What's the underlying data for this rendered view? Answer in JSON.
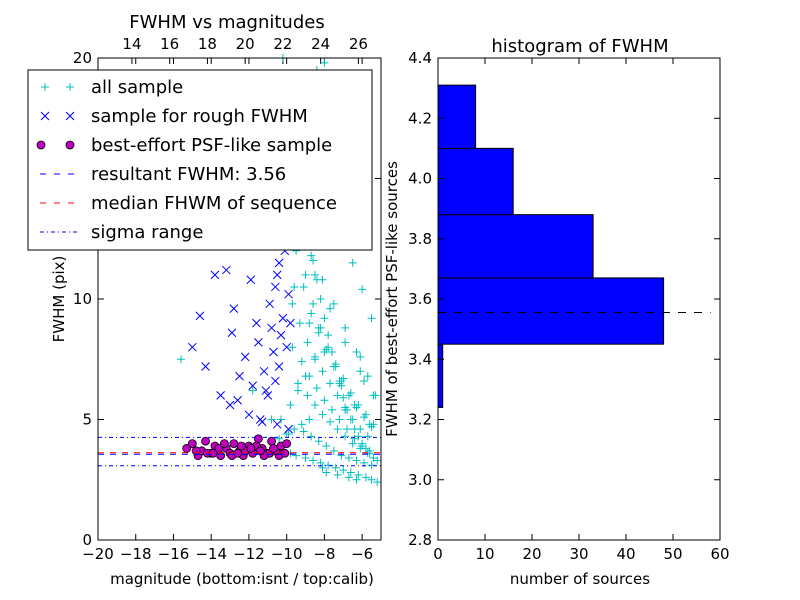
{
  "chart_data": [
    {
      "type": "scatter",
      "title": "FWHM vs magnitudes",
      "xlabel": "magnitude (bottom:isnt / top:calib)",
      "ylabel": "FWHM (pix)",
      "xlim": [
        -20,
        -5
      ],
      "ylim": [
        0,
        20
      ],
      "x_ticks": [
        "−20",
        "−18",
        "−16",
        "−14",
        "−12",
        "−10",
        "−8",
        "−6"
      ],
      "y_ticks": [
        "0",
        "5",
        "10",
        "15",
        "20"
      ],
      "top_axis": {
        "label_values": [
          "14",
          "16",
          "18",
          "20",
          "22",
          "24",
          "26"
        ],
        "calib_minus_isnt": 32.2
      },
      "grid": false,
      "legend_position": "upper-left",
      "legend": [
        {
          "key": "all",
          "label": "all sample",
          "marker": "+",
          "color": "#00BFBF"
        },
        {
          "key": "rough",
          "label": "sample for rough FWHM",
          "marker": "x",
          "color": "#0000FF"
        },
        {
          "key": "best",
          "label": "best-effort PSF-like sample",
          "marker": "o",
          "color": "#BF00BF"
        },
        {
          "key": "result",
          "label": "resultant FWHM: 3.56",
          "line": "dashed",
          "color": "#0000FF"
        },
        {
          "key": "median",
          "label": "median FHWM of sequence",
          "line": "dashed",
          "color": "#FF0000"
        },
        {
          "key": "sigma",
          "label": "sigma range",
          "line": "dashdot",
          "color": "#0000FF"
        }
      ],
      "hlines": {
        "result": 3.56,
        "median": 3.62,
        "sigma": [
          3.08,
          4.26
        ]
      },
      "series": [
        {
          "key": "all",
          "x": [
            -10.2,
            -10.0,
            -9.8,
            -9.6,
            -9.4,
            -9.2,
            -9.0,
            -8.8,
            -8.6,
            -8.4,
            -8.2,
            -8.0,
            -7.8,
            -7.6,
            -7.4,
            -7.2,
            -7.0,
            -6.8,
            -6.6,
            -6.4,
            -6.2,
            -6.0,
            -5.8,
            -5.6,
            -5.4,
            -5.2,
            -9.5,
            -9.1,
            -8.7,
            -8.3,
            -7.9,
            -7.5,
            -7.1,
            -6.7,
            -6.3,
            -5.9,
            -5.5,
            -9.3,
            -8.9,
            -8.5,
            -8.1,
            -7.7,
            -7.3,
            -6.9,
            -6.5,
            -6.1,
            -5.7,
            -9.7,
            -9.2,
            -8.8,
            -8.4,
            -8.0,
            -7.6,
            -7.2,
            -6.8,
            -6.4,
            -6.0,
            -5.6,
            -9.0,
            -8.6,
            -8.2,
            -7.8,
            -7.4,
            -7.0,
            -6.6,
            -6.2,
            -5.8,
            -5.4,
            -9.4,
            -8.9,
            -8.5,
            -8.1,
            -7.7,
            -7.3,
            -6.9,
            -6.5,
            -6.1,
            -5.7,
            -9.1,
            -8.7,
            -8.3,
            -7.9,
            -7.5,
            -7.1,
            -6.7,
            -6.3,
            -5.9,
            -5.5,
            -9.6,
            -8.8,
            -8.0,
            -7.2,
            -6.4,
            -5.6,
            -9.3,
            -8.5,
            -7.7,
            -6.9,
            -6.1,
            -5.3,
            -10.5,
            -11.0,
            -11.5,
            -12.5,
            -13.5,
            -14.5,
            -9.8,
            -9.5,
            -9.0,
            -8.6,
            -8.2,
            -7.8,
            -7.4,
            -7.0,
            -6.6,
            -6.2,
            -5.8,
            -5.5,
            -5.2,
            -8.4,
            -8.0,
            -7.6,
            -7.2,
            -6.8,
            -6.4,
            -7.5,
            -7.0,
            -6.5,
            -6.0,
            -5.5,
            -8.8,
            -9.2,
            -9.6,
            -10.0,
            -10.4,
            -13.0,
            -14.0,
            -15.0,
            -16.5,
            -17.5,
            -8.1,
            -7.9,
            -7.3,
            -6.7,
            -6.3,
            -8.5,
            -9.0,
            -9.4,
            -9.8,
            -10.3,
            -12.0,
            -13.8,
            -15.2,
            -15.6,
            -11.8,
            -10.8,
            -9.9,
            -9.7,
            -8.3,
            -7.1,
            -6.9,
            -6.1,
            -5.9,
            -5.4,
            -9.3,
            -8.7,
            -8.1,
            -7.5,
            -6.9,
            -6.3,
            -5.7
          ],
          "y": [
            20.0,
            18.5,
            17.0,
            16.0,
            15.2,
            14.5,
            13.8,
            12.5,
            11.6,
            10.8,
            10.0,
            9.2,
            8.5,
            7.8,
            7.2,
            6.5,
            5.9,
            5.4,
            5.0,
            4.6,
            4.3,
            4.0,
            3.8,
            3.6,
            3.4,
            3.3,
            12.0,
            10.5,
            9.4,
            8.6,
            7.9,
            7.2,
            6.6,
            6.0,
            5.5,
            5.1,
            4.7,
            9.0,
            8.2,
            7.6,
            7.0,
            6.5,
            6.0,
            5.5,
            5.0,
            4.6,
            4.3,
            8.0,
            7.4,
            6.8,
            6.3,
            5.8,
            5.4,
            5.0,
            4.6,
            4.2,
            3.9,
            3.7,
            11.0,
            9.8,
            8.8,
            8.0,
            7.3,
            6.7,
            6.1,
            5.6,
            5.2,
            4.8,
            6.5,
            6.0,
            5.6,
            5.2,
            4.9,
            4.6,
            4.3,
            4.0,
            3.8,
            3.6,
            4.5,
            4.3,
            4.1,
            3.9,
            3.7,
            3.5,
            3.4,
            3.3,
            3.2,
            3.1,
            10.5,
            9.0,
            7.8,
            6.6,
            5.6,
            4.8,
            13.0,
            11.0,
            9.6,
            8.2,
            7.0,
            6.0,
            15.5,
            14.0,
            14.8,
            15.8,
            14.3,
            15.3,
            3.6,
            3.5,
            3.4,
            3.3,
            3.2,
            3.1,
            3.0,
            2.9,
            2.8,
            2.7,
            2.6,
            2.5,
            2.4,
            19.5,
            19.8,
            19.2,
            18.2,
            17.6,
            16.8,
            13.5,
            12.6,
            11.5,
            10.4,
            9.2,
            5.0,
            4.8,
            4.6,
            4.4,
            4.2,
            14.6,
            15.0,
            15.4,
            16.0,
            15.6,
            3.0,
            2.8,
            2.7,
            2.6,
            2.5,
            7.5,
            6.8,
            6.2,
            5.6,
            5.0,
            13.6,
            15.6,
            14.6,
            7.5,
            6.2,
            5.0,
            4.4,
            9.8,
            8.8,
            6.4,
            5.4,
            7.6,
            6.6,
            6.0,
            12.8,
            11.8,
            10.8,
            9.8,
            8.8,
            7.8,
            6.8
          ]
        },
        {
          "key": "rough",
          "x": [
            -15.0,
            -14.3,
            -13.5,
            -13.0,
            -12.5,
            -12.2,
            -12.0,
            -11.8,
            -11.5,
            -11.2,
            -11.0,
            -10.8,
            -10.6,
            -10.4,
            -10.2,
            -10.0,
            -9.9,
            -9.8,
            -13.8,
            -12.8,
            -11.6,
            -10.9,
            -10.5,
            -10.1,
            -9.9,
            -9.8,
            -10.7,
            -10.3,
            -12.6,
            -11.4,
            -10.6,
            -10.2,
            -9.9,
            -14.6,
            -13.2,
            -12.4,
            -11.9,
            -11.1,
            -10.4,
            -10.0,
            -9.8,
            -11.7,
            -10.8,
            -10.1,
            -12.9,
            -11.3,
            -10.5,
            -9.9
          ],
          "y": [
            8.0,
            7.2,
            6.0,
            5.6,
            6.8,
            7.6,
            5.2,
            6.4,
            8.2,
            7.0,
            6.0,
            8.8,
            10.5,
            11.5,
            12.5,
            13.5,
            14.6,
            15.2,
            11.0,
            9.6,
            9.0,
            9.8,
            11.0,
            12.0,
            13.0,
            14.0,
            7.8,
            8.5,
            5.8,
            5.0,
            6.6,
            9.2,
            10.2,
            9.3,
            11.2,
            12.5,
            10.8,
            6.2,
            7.2,
            8.0,
            9.0,
            15.8,
            14.2,
            12.8,
            8.6,
            4.9,
            4.8,
            4.6
          ]
        },
        {
          "key": "best",
          "x": [
            -15.3,
            -15.0,
            -14.7,
            -14.5,
            -14.3,
            -14.0,
            -13.8,
            -13.5,
            -13.2,
            -13.0,
            -12.8,
            -12.5,
            -12.3,
            -12.0,
            -11.8,
            -11.5,
            -11.3,
            -11.0,
            -10.8,
            -10.5,
            -10.3,
            -10.0,
            -14.2,
            -13.6,
            -12.9,
            -12.2,
            -11.6,
            -10.9,
            -10.4,
            -13.3,
            -12.6,
            -11.9,
            -11.2,
            -10.6,
            -10.1,
            -14.8,
            -13.9,
            -12.4,
            -11.4,
            -10.7
          ],
          "y": [
            3.8,
            4.0,
            3.5,
            3.7,
            4.1,
            3.6,
            3.9,
            3.5,
            3.8,
            3.6,
            4.0,
            3.7,
            3.5,
            3.9,
            3.6,
            4.2,
            3.8,
            3.6,
            4.1,
            3.7,
            3.9,
            4.0,
            3.6,
            3.8,
            3.5,
            3.7,
            3.9,
            3.6,
            3.5,
            4.0,
            3.6,
            3.8,
            3.5,
            3.7,
            3.6,
            3.7,
            3.6,
            3.9,
            3.7,
            3.8
          ]
        }
      ]
    },
    {
      "type": "bar",
      "orientation": "horizontal",
      "title": "histogram of FWHM",
      "xlabel": "number of sources",
      "ylabel": "FWHM of best-effort PSF-like sources",
      "xlim": [
        0,
        60
      ],
      "ylim": [
        2.8,
        4.4
      ],
      "x_ticks": [
        "0",
        "10",
        "20",
        "30",
        "40",
        "50",
        "60"
      ],
      "y_ticks": [
        "2.8",
        "3.0",
        "3.2",
        "3.4",
        "3.6",
        "3.8",
        "4.0",
        "4.2",
        "4.4"
      ],
      "bar_color": "#0000FF",
      "bins": [
        {
          "low": 3.24,
          "high": 3.45,
          "count": 1
        },
        {
          "low": 3.45,
          "high": 3.67,
          "count": 48
        },
        {
          "low": 3.67,
          "high": 3.88,
          "count": 33
        },
        {
          "low": 3.88,
          "high": 4.1,
          "count": 16
        },
        {
          "low": 4.1,
          "high": 4.31,
          "count": 8
        }
      ],
      "reference_line": {
        "value": 3.555,
        "xmax": 58,
        "color": "#000000",
        "line": "dashed"
      }
    }
  ]
}
